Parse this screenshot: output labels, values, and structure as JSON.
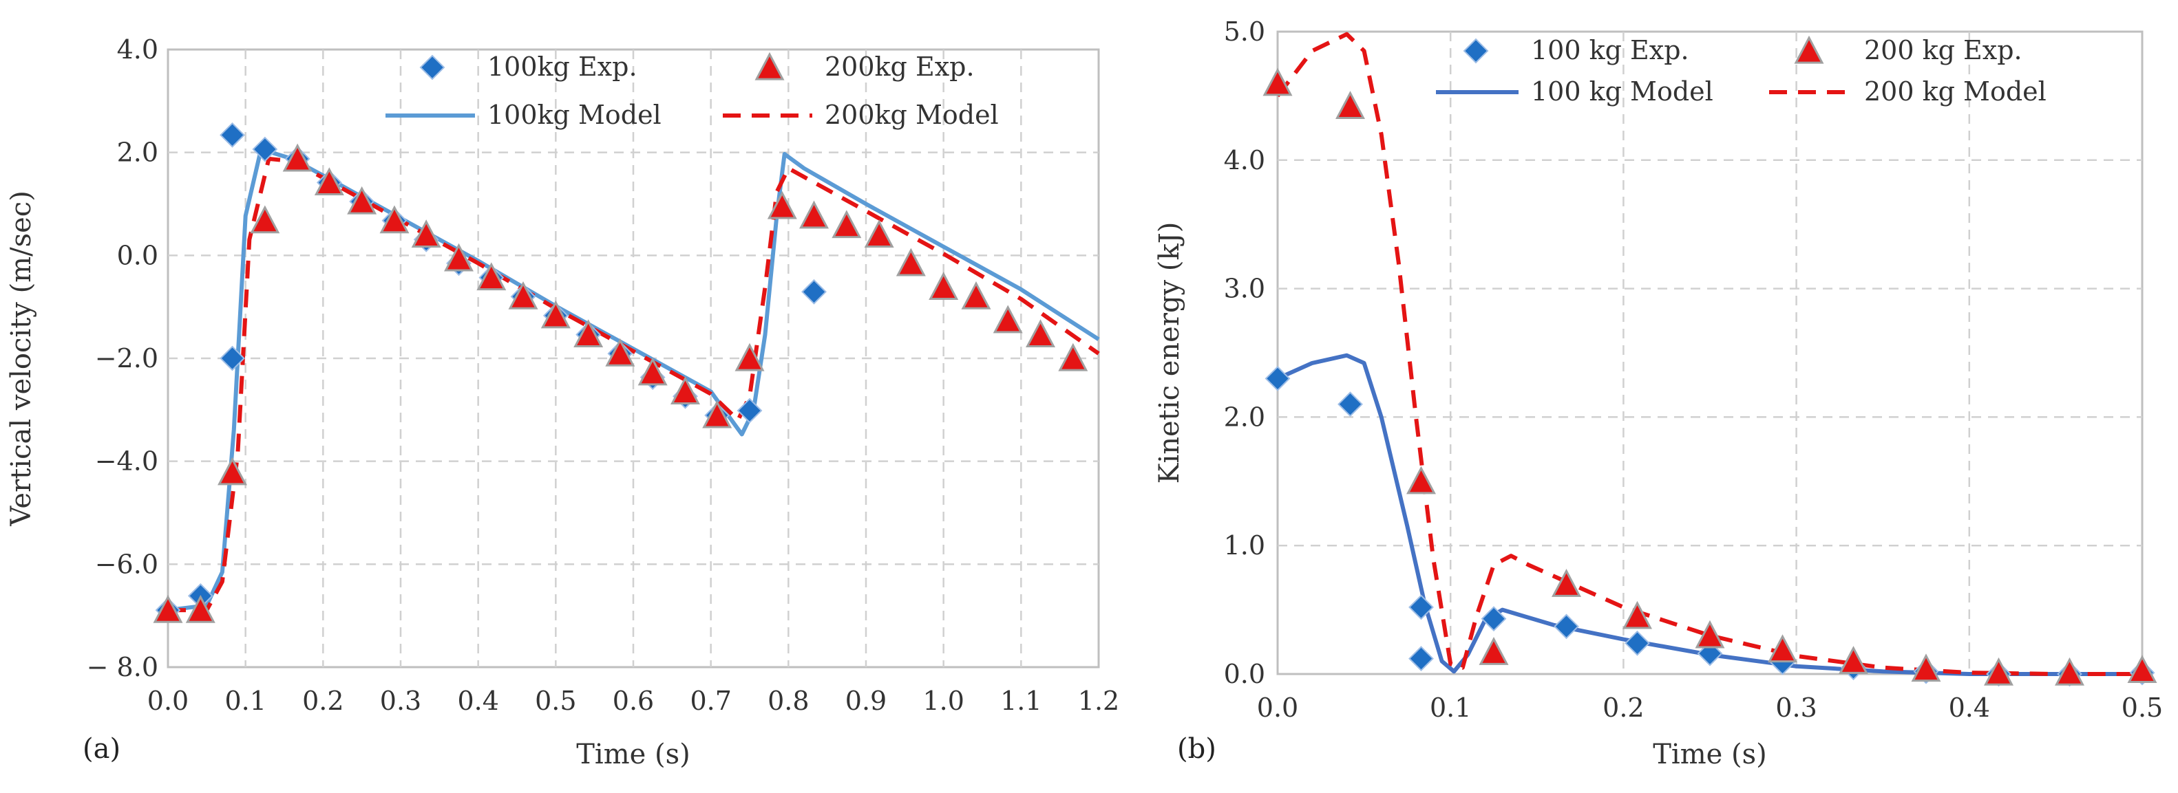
{
  "chart_data": [
    {
      "type": "scatter",
      "panel_label": "(a)",
      "xlabel": "Time (s)",
      "ylabel": "Vertical velocity (m/sec)",
      "xlim": [
        0,
        1.2
      ],
      "ylim": [
        -8,
        5
      ],
      "x_ticks": [
        "0.0",
        "0.1",
        "0.2",
        "0.3",
        "0.4",
        "0.5",
        "0.6",
        "0.7",
        "0.8",
        "0.9",
        "1.0",
        "1.1",
        "1.2"
      ],
      "y_ticks": [
        "− 8.0",
        "−6.0",
        "−4.0",
        "−2.0",
        "0.0",
        "2.0",
        "4.0"
      ],
      "grid": true,
      "legend": "top",
      "series": [
        {
          "name": "100kg Exp.",
          "kind": "marker",
          "marker": "diamond",
          "color": "#1f6fc4",
          "x": [
            0.0,
            0.042,
            0.083,
            0.083,
            0.125,
            0.167,
            0.208,
            0.25,
            0.292,
            0.333,
            0.375,
            0.417,
            0.458,
            0.5,
            0.542,
            0.583,
            0.625,
            0.667,
            0.708,
            0.75,
            0.833
          ],
          "y": [
            -6.8,
            -6.5,
            -1.5,
            3.2,
            2.9,
            2.7,
            2.2,
            1.8,
            1.4,
            1.0,
            0.5,
            0.2,
            -0.2,
            -0.6,
            -1.0,
            -1.4,
            -1.9,
            -2.3,
            -2.7,
            -2.6,
            -0.1
          ]
        },
        {
          "name": "200kg Exp.",
          "kind": "marker",
          "marker": "triangle",
          "color": "#e41414",
          "x": [
            0.0,
            0.042,
            0.083,
            0.125,
            0.167,
            0.208,
            0.25,
            0.292,
            0.333,
            0.375,
            0.417,
            0.458,
            0.5,
            0.542,
            0.583,
            0.625,
            0.667,
            0.708,
            0.75,
            0.792,
            0.833,
            0.875,
            0.917,
            0.958,
            1.0,
            1.042,
            1.083,
            1.125,
            1.167
          ],
          "y": [
            -6.8,
            -6.8,
            -3.9,
            1.4,
            2.7,
            2.2,
            1.8,
            1.4,
            1.1,
            0.6,
            0.2,
            -0.2,
            -0.6,
            -1.0,
            -1.4,
            -1.8,
            -2.2,
            -2.7,
            -1.5,
            1.7,
            1.5,
            1.3,
            1.1,
            0.5,
            0.0,
            -0.2,
            -0.7,
            -1.0,
            -1.5
          ]
        },
        {
          "name": "100kg Model",
          "kind": "line",
          "dash": false,
          "color": "#5b9bd5",
          "x": [
            0.0,
            0.05,
            0.07,
            0.085,
            0.1,
            0.12,
            0.16,
            0.2,
            0.3,
            0.4,
            0.5,
            0.6,
            0.7,
            0.74,
            0.755,
            0.77,
            0.785,
            0.795,
            0.82,
            0.9,
            1.0,
            1.1,
            1.2
          ],
          "y": [
            -6.8,
            -6.7,
            -6.0,
            -3.0,
            1.5,
            2.9,
            2.7,
            2.35,
            1.45,
            0.55,
            -0.4,
            -1.3,
            -2.2,
            -3.1,
            -2.6,
            -1.0,
            1.5,
            2.8,
            2.5,
            1.75,
            0.85,
            -0.05,
            -1.1
          ]
        },
        {
          "name": "200kg Model",
          "kind": "line",
          "dash": true,
          "color": "#e41414",
          "x": [
            0.0,
            0.05,
            0.07,
            0.09,
            0.105,
            0.13,
            0.16,
            0.2,
            0.3,
            0.4,
            0.5,
            0.6,
            0.7,
            0.735,
            0.75,
            0.77,
            0.785,
            0.8,
            0.85,
            0.9,
            1.0,
            1.1,
            1.2
          ],
          "y": [
            -6.8,
            -6.8,
            -6.2,
            -3.5,
            1.0,
            2.7,
            2.65,
            2.3,
            1.4,
            0.5,
            -0.45,
            -1.35,
            -2.25,
            -2.8,
            -2.3,
            0.0,
            2.0,
            2.5,
            2.05,
            1.6,
            0.7,
            -0.25,
            -1.4
          ]
        }
      ]
    },
    {
      "type": "scatter",
      "panel_label": "(b)",
      "xlabel": "Time (s)",
      "ylabel": "Kinetic energy (kJ)",
      "xlim": [
        0,
        0.5
      ],
      "ylim": [
        0,
        5
      ],
      "x_ticks": [
        "0.0",
        "0.1",
        "0.2",
        "0.3",
        "0.4",
        "0.5"
      ],
      "y_ticks": [
        "0.0",
        "1.0",
        "2.0",
        "3.0",
        "4.0",
        "5.0"
      ],
      "grid": true,
      "legend": "top",
      "series": [
        {
          "name": "100 kg Exp.",
          "kind": "marker",
          "marker": "diamond",
          "color": "#1f6fc4",
          "x": [
            0.0,
            0.042,
            0.083,
            0.083,
            0.125,
            0.167,
            0.208,
            0.25,
            0.292,
            0.333,
            0.375,
            0.417,
            0.458,
            0.5
          ],
          "y": [
            2.3,
            2.1,
            0.52,
            0.12,
            0.43,
            0.37,
            0.24,
            0.16,
            0.09,
            0.05,
            0.02,
            0.0,
            0.0,
            0.01
          ]
        },
        {
          "name": "200 kg Exp.",
          "kind": "marker",
          "marker": "triangle",
          "color": "#e41414",
          "x": [
            0.0,
            0.042,
            0.083,
            0.125,
            0.167,
            0.208,
            0.25,
            0.292,
            0.333,
            0.375,
            0.417,
            0.458,
            0.5
          ],
          "y": [
            4.6,
            4.42,
            1.5,
            0.17,
            0.7,
            0.45,
            0.3,
            0.19,
            0.1,
            0.04,
            0.01,
            0.01,
            0.03
          ]
        },
        {
          "name": "100 kg Model",
          "kind": "line",
          "dash": false,
          "color": "#4472c4",
          "x": [
            0.0,
            0.02,
            0.04,
            0.05,
            0.06,
            0.075,
            0.085,
            0.095,
            0.102,
            0.11,
            0.12,
            0.13,
            0.14,
            0.16,
            0.2,
            0.25,
            0.3,
            0.35,
            0.4,
            0.45,
            0.5
          ],
          "y": [
            2.3,
            2.42,
            2.48,
            2.42,
            2.0,
            1.15,
            0.55,
            0.1,
            0.02,
            0.15,
            0.42,
            0.5,
            0.46,
            0.38,
            0.27,
            0.15,
            0.06,
            0.02,
            0.0,
            0.0,
            0.0
          ]
        },
        {
          "name": "200 kg Model",
          "kind": "line",
          "dash": true,
          "color": "#e41414",
          "x": [
            0.0,
            0.02,
            0.04,
            0.05,
            0.06,
            0.07,
            0.08,
            0.09,
            0.1,
            0.107,
            0.115,
            0.125,
            0.135,
            0.145,
            0.17,
            0.2,
            0.25,
            0.3,
            0.35,
            0.4,
            0.45,
            0.5
          ],
          "y": [
            4.5,
            4.85,
            4.98,
            4.85,
            4.2,
            3.2,
            2.0,
            0.9,
            0.08,
            0.05,
            0.45,
            0.85,
            0.92,
            0.85,
            0.7,
            0.52,
            0.3,
            0.14,
            0.05,
            0.01,
            0.0,
            0.0
          ]
        }
      ]
    }
  ]
}
